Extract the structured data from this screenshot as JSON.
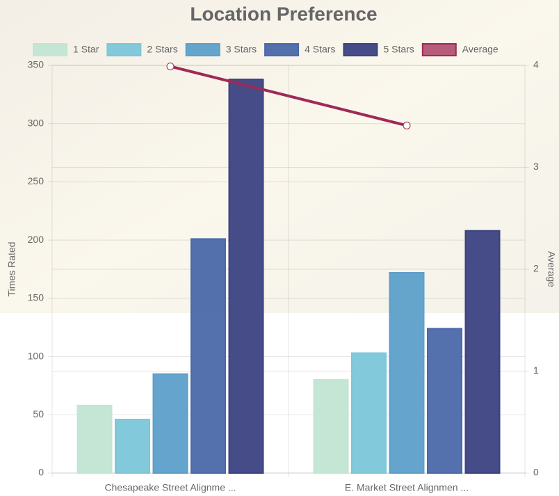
{
  "chart_data": {
    "type": "bar",
    "title": "Location Preference",
    "categories": [
      "Chesapeake Street Alignme ...",
      "E. Market Street Alignmen ..."
    ],
    "y_label": "Times Rated",
    "y2_label": "Average",
    "ylim": [
      0,
      350
    ],
    "yticks": [
      0,
      50,
      100,
      150,
      200,
      250,
      300,
      350
    ],
    "y2lim": [
      0,
      4
    ],
    "y2ticks": [
      0,
      1,
      2,
      3,
      4
    ],
    "grid": true,
    "series": [
      {
        "name": "1 Star",
        "type": "bar",
        "color": "#c2e5d3",
        "values": [
          58,
          80
        ]
      },
      {
        "name": "2 Stars",
        "type": "bar",
        "color": "#7cc6da",
        "values": [
          46,
          103
        ]
      },
      {
        "name": "3 Stars",
        "type": "bar",
        "color": "#5d9fc9",
        "values": [
          85,
          172
        ]
      },
      {
        "name": "4 Stars",
        "type": "bar",
        "color": "#4b68a9",
        "values": [
          201,
          124
        ]
      },
      {
        "name": "5 Stars",
        "type": "bar",
        "color": "#3b4282",
        "values": [
          338,
          208
        ]
      },
      {
        "name": "Average",
        "type": "line",
        "axis": "y2",
        "color": "#9e2a56",
        "values": [
          3.99,
          3.41
        ]
      }
    ]
  }
}
